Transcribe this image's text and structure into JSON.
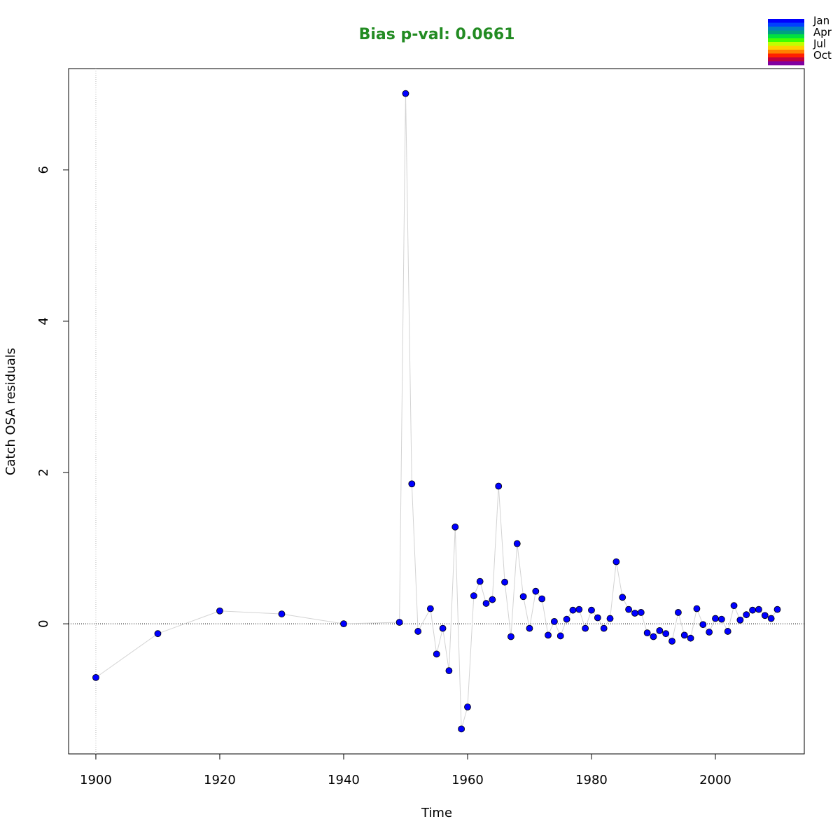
{
  "chart_data": {
    "type": "scatter",
    "title": "Bias p-val: 0.0661",
    "title_color": "#228b22",
    "xlabel": "Time",
    "ylabel": "Catch OSA residuals",
    "x": [
      1900,
      1910,
      1920,
      1930,
      1940,
      1949,
      1950,
      1951,
      1952,
      1954,
      1955,
      1956,
      1957,
      1958,
      1959,
      1960,
      1961,
      1962,
      1963,
      1964,
      1965,
      1966,
      1967,
      1968,
      1969,
      1970,
      1971,
      1972,
      1973,
      1974,
      1975,
      1976,
      1977,
      1978,
      1979,
      1980,
      1981,
      1982,
      1983,
      1984,
      1985,
      1986,
      1987,
      1988,
      1989,
      1990,
      1991,
      1992,
      1993,
      1994,
      1995,
      1996,
      1997,
      1998,
      1999,
      2000,
      2001,
      2002,
      2003,
      2004,
      2005,
      2006,
      2007,
      2008,
      2009,
      2010
    ],
    "series": [
      {
        "color": "#0000ff",
        "line_color": "#d3d3d3",
        "values": [
          -0.71,
          -0.13,
          0.17,
          0.13,
          0.0,
          0.02,
          7.01,
          1.85,
          -0.1,
          0.2,
          -0.4,
          -0.06,
          -0.62,
          1.28,
          -1.39,
          -1.1,
          0.37,
          0.56,
          0.27,
          0.32,
          1.82,
          0.55,
          -0.17,
          1.06,
          0.36,
          -0.06,
          0.43,
          0.33,
          -0.15,
          0.03,
          -0.16,
          0.06,
          0.18,
          0.19,
          -0.06,
          0.18,
          0.08,
          -0.06,
          0.07,
          0.82,
          0.35,
          0.19,
          0.14,
          0.15,
          -0.12,
          -0.17,
          -0.09,
          -0.13,
          -0.23,
          0.15,
          -0.15,
          -0.19,
          0.2,
          -0.01,
          -0.11,
          0.07,
          0.06,
          -0.1,
          0.24,
          0.05,
          0.12,
          0.18,
          0.19,
          0.11,
          0.07,
          0.19
        ]
      }
    ],
    "xlim": [
      1895.6,
      2014.35
    ],
    "ylim": [
      -1.72,
      7.34
    ],
    "xticks": [
      1900,
      1920,
      1940,
      1960,
      1980,
      2000
    ],
    "yticks": [
      0,
      2,
      4,
      6
    ],
    "hline": 0,
    "vline": 1900,
    "legend": {
      "labels": [
        "Jan",
        "Apr",
        "Jul",
        "Oct"
      ],
      "colors": [
        "#0000ff",
        "#0040ff",
        "#0080c0",
        "#00a080",
        "#00e040",
        "#40ff00",
        "#c0ff00",
        "#ffd000",
        "#ff8000",
        "#ff2000",
        "#c00040",
        "#8000a0"
      ]
    }
  }
}
